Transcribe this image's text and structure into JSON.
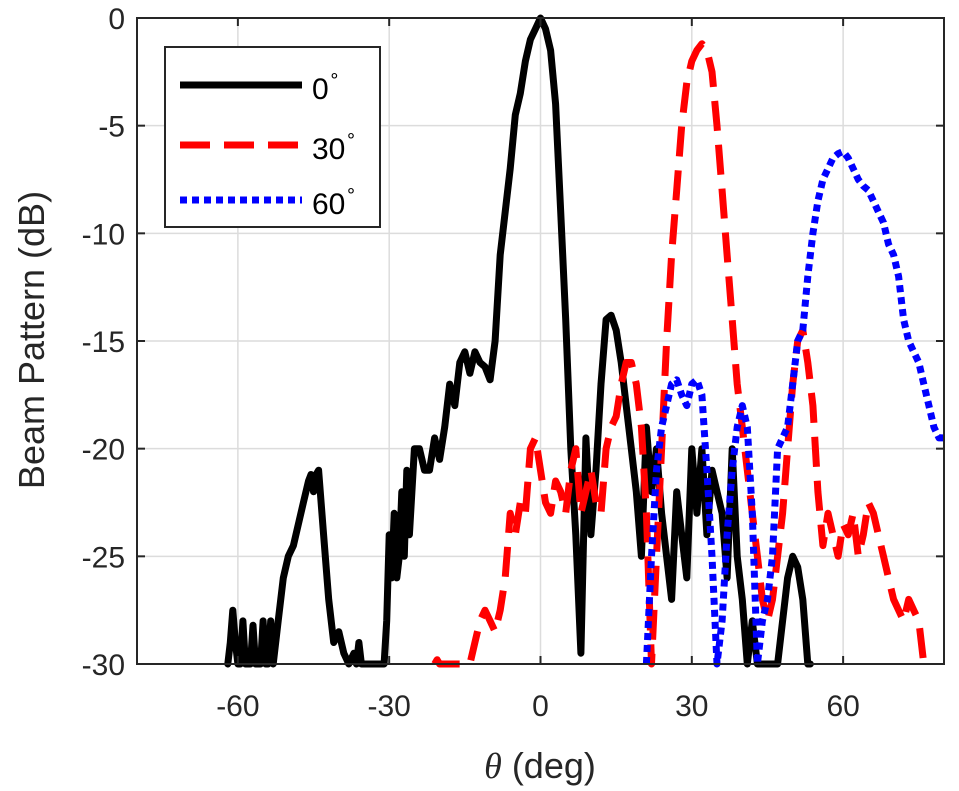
{
  "chart_data": {
    "type": "line",
    "title": "",
    "xlabel_symbol": "θ",
    "xlabel_unit": "(deg)",
    "ylabel": "Beam Pattern (dB)",
    "xlim": [
      -80,
      80
    ],
    "ylim": [
      -30,
      0
    ],
    "grid": true,
    "legend_position": "top-left",
    "x_ticks": [
      -60,
      -30,
      0,
      30,
      60
    ],
    "y_ticks": [
      0,
      -5,
      -10,
      -15,
      -20,
      -25,
      -30
    ],
    "degree_symbol": "∘",
    "series": [
      {
        "name": "0",
        "color": "#000000",
        "dash": "solid",
        "x": [
          -62,
          -61.5,
          -61,
          -60.5,
          -60,
          -59.5,
          -59,
          -58.5,
          -58,
          -57.5,
          -57,
          -56.5,
          -56,
          -55.5,
          -55,
          -54.5,
          -54,
          -53.5,
          -53,
          -52,
          -51,
          -50,
          -49,
          -48,
          -47,
          -46,
          -45.5,
          -45,
          -44.5,
          -44,
          -43.5,
          -43,
          -42,
          -41,
          -40,
          -39,
          -38,
          -37,
          -36.5,
          -36,
          -35.5,
          -35,
          -34.5,
          -34,
          -33,
          -32,
          -31,
          -30.5,
          -30,
          -29.5,
          -29,
          -28.5,
          -28,
          -27.5,
          -27,
          -26.5,
          -26,
          -25,
          -24,
          -23,
          -22,
          -21,
          -20,
          -19,
          -18,
          -17,
          -16,
          -15,
          -14,
          -13,
          -12,
          -11,
          -10,
          -9,
          -8,
          -7,
          -6,
          -5,
          -4,
          -3,
          -2,
          -1,
          0,
          1,
          2,
          3,
          4,
          5,
          6,
          7,
          8,
          9,
          10,
          11,
          12,
          13,
          14,
          15,
          16,
          17,
          18,
          19,
          20,
          21,
          22,
          23,
          24,
          25,
          26,
          27,
          28,
          29,
          30,
          31,
          32,
          33,
          34,
          35,
          36,
          37,
          38,
          39,
          40,
          41,
          42,
          43,
          44,
          45,
          46,
          47,
          48,
          49,
          50,
          51,
          52,
          53,
          53.5
        ],
        "y": [
          -30,
          -29,
          -27.5,
          -29,
          -30,
          -30,
          -28,
          -30,
          -30,
          -30,
          -28.2,
          -30,
          -30,
          -30,
          -28,
          -30,
          -30,
          -28,
          -30,
          -28,
          -26,
          -25,
          -24.5,
          -23.5,
          -22.5,
          -21.5,
          -21.2,
          -22,
          -21.2,
          -21,
          -22.5,
          -24,
          -27,
          -29,
          -28.5,
          -29.5,
          -30,
          -29.5,
          -30,
          -29,
          -30,
          -30,
          -30,
          -30,
          -30,
          -30,
          -30,
          -28,
          -24,
          -26,
          -23,
          -26,
          -25,
          -22,
          -25,
          -21,
          -24,
          -20,
          -20,
          -21,
          -21,
          -19.5,
          -20.5,
          -19,
          -17,
          -18,
          -16,
          -15.5,
          -16.5,
          -15.5,
          -16,
          -16.2,
          -16.8,
          -15,
          -11,
          -9,
          -7,
          -4.5,
          -3.5,
          -2,
          -1,
          -0.5,
          0,
          -0.5,
          -1.5,
          -4,
          -9,
          -14,
          -20,
          -24,
          -29.5,
          -19.5,
          -24,
          -21,
          -17,
          -14,
          -13.8,
          -14.5,
          -16,
          -18,
          -20,
          -22,
          -25,
          -19,
          -22,
          -20,
          -23,
          -25,
          -27,
          -22,
          -24,
          -26,
          -20,
          -23,
          -20,
          -24,
          -21,
          -22,
          -23,
          -26,
          -20,
          -25,
          -27,
          -30,
          -28,
          -30,
          -30,
          -30,
          -30,
          -30,
          -28,
          -26,
          -25,
          -25.5,
          -27,
          -30,
          -30
        ]
      },
      {
        "name": "30",
        "color": "#ff0000",
        "dash": "dashed",
        "x": [
          -21,
          -20.5,
          -20,
          -14,
          -13,
          -12,
          -11,
          -10,
          -9,
          -8,
          -7,
          -6,
          -5,
          -4,
          -3,
          -2,
          -1,
          0,
          1,
          2,
          3,
          4,
          5,
          6,
          7,
          8,
          9,
          10,
          11,
          12,
          13,
          14,
          15,
          16,
          17,
          18,
          19,
          20,
          21,
          22,
          23,
          24,
          25,
          26,
          27,
          28,
          29,
          30,
          31,
          32,
          33,
          34,
          35,
          36,
          37,
          38,
          39,
          40,
          41,
          42,
          43,
          44,
          45,
          46,
          47,
          48,
          49,
          50,
          51,
          52,
          53,
          54,
          55,
          56,
          57,
          58,
          59,
          60,
          61,
          62,
          63,
          64,
          65,
          66,
          67,
          68,
          69,
          70,
          71,
          72,
          73,
          74,
          75,
          76,
          77
        ],
        "y": [
          -30,
          -29.8,
          -30,
          -30,
          -29,
          -28,
          -27.5,
          -28,
          -28.5,
          -27.5,
          -26,
          -23,
          -24,
          -22.5,
          -23,
          -20,
          -19.5,
          -21,
          -22.5,
          -23,
          -21.5,
          -22,
          -23,
          -21,
          -20,
          -23,
          -22,
          -21,
          -22.5,
          -23,
          -20,
          -19,
          -18.5,
          -17,
          -16,
          -16,
          -17,
          -19,
          -23,
          -30,
          -25,
          -20,
          -15,
          -11,
          -8,
          -5,
          -3,
          -2,
          -1.5,
          -1.2,
          -1.5,
          -2.5,
          -5,
          -8,
          -11,
          -14,
          -17,
          -19,
          -21,
          -23,
          -25,
          -27,
          -28,
          -27,
          -25,
          -23,
          -20,
          -17,
          -15,
          -14.5,
          -16,
          -18,
          -22,
          -24.5,
          -23,
          -24,
          -25,
          -23.5,
          -24,
          -23,
          -25,
          -24,
          -22.5,
          -23,
          -24,
          -25,
          -26,
          -27,
          -27.5,
          -28,
          -27,
          -27.5,
          -28,
          -30,
          -30
        ]
      },
      {
        "name": "60",
        "color": "#0000ff",
        "dash": "dotted",
        "x": [
          21,
          22,
          23,
          24,
          25,
          26,
          27,
          28,
          29,
          30,
          31,
          32,
          33,
          34,
          35,
          36,
          37,
          38,
          39,
          40,
          41,
          42,
          43,
          44,
          45,
          46,
          47,
          48,
          49,
          50,
          51,
          52,
          53,
          54,
          55,
          56,
          57,
          58,
          59,
          60,
          61,
          62,
          63,
          64,
          65,
          66,
          67,
          68,
          69,
          70,
          71,
          72,
          73,
          74,
          75,
          76,
          77,
          78,
          79,
          80
        ],
        "y": [
          -30,
          -25,
          -21,
          -19,
          -18,
          -17,
          -16.8,
          -17.5,
          -18,
          -17,
          -16.8,
          -17.5,
          -21,
          -25,
          -30,
          -28,
          -24,
          -21,
          -19,
          -18,
          -19,
          -23,
          -30,
          -28,
          -27,
          -25,
          -20,
          -19.5,
          -19,
          -17,
          -15,
          -14.5,
          -12,
          -10,
          -8.5,
          -7.5,
          -7,
          -6.5,
          -6.3,
          -6.2,
          -6.5,
          -7,
          -7.5,
          -7.8,
          -8,
          -8.5,
          -9,
          -9.5,
          -10.5,
          -11,
          -12,
          -14,
          -15,
          -15.5,
          -16,
          -17,
          -18,
          -19,
          -19.5,
          -19.5
        ]
      }
    ]
  }
}
